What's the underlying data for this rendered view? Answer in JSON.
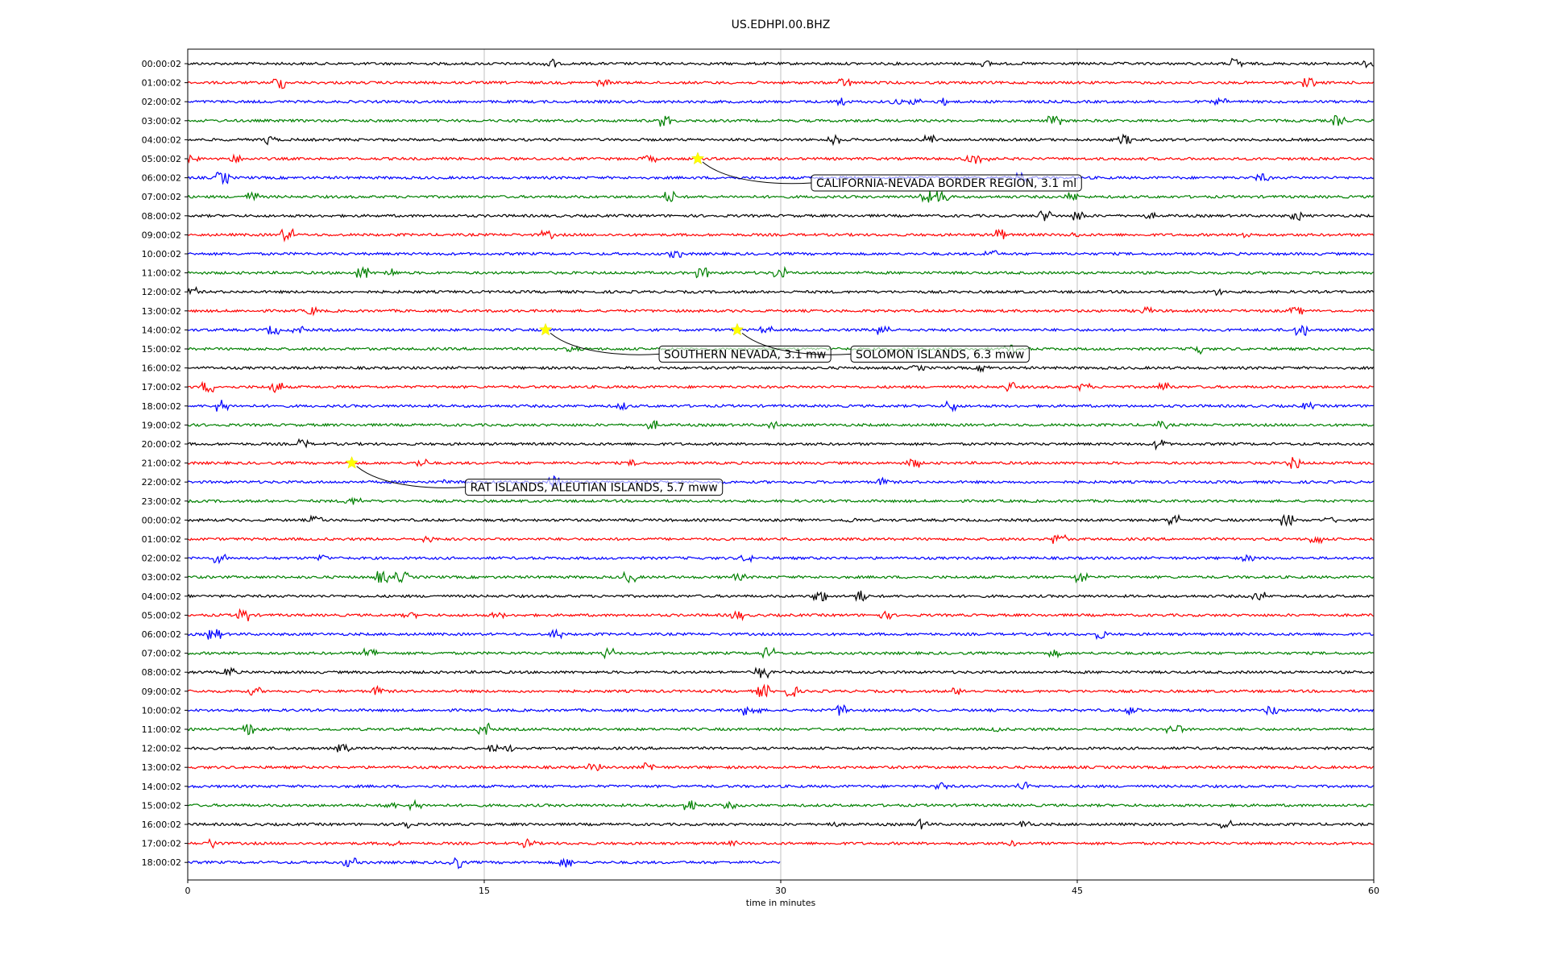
{
  "chart_data": {
    "type": "line",
    "title": "US.EDHPI.00.BHZ",
    "xlabel": "time in minutes",
    "ylabel": "",
    "xlim": [
      0,
      60
    ],
    "x_ticks": [
      "0",
      "15",
      "30",
      "45",
      "60"
    ],
    "x_tick_values": [
      0,
      15,
      30,
      45,
      60
    ],
    "grid": "vertical",
    "trace_colors": [
      "#000000",
      "#ff0000",
      "#0000ff",
      "#008000"
    ],
    "event_marker_color": "#ffff00",
    "row_labels": [
      "00:00:02",
      "01:00:02",
      "02:00:02",
      "03:00:02",
      "04:00:02",
      "05:00:02",
      "06:00:02",
      "07:00:02",
      "08:00:02",
      "09:00:02",
      "10:00:02",
      "11:00:02",
      "12:00:02",
      "13:00:02",
      "14:00:02",
      "15:00:02",
      "16:00:02",
      "17:00:02",
      "18:00:02",
      "19:00:02",
      "20:00:02",
      "21:00:02",
      "22:00:02",
      "23:00:02",
      "00:00:02",
      "01:00:02",
      "02:00:02",
      "03:00:02",
      "04:00:02",
      "05:00:02",
      "06:00:02",
      "07:00:02",
      "08:00:02",
      "09:00:02",
      "10:00:02",
      "11:00:02",
      "12:00:02",
      "13:00:02",
      "14:00:02",
      "15:00:02",
      "16:00:02",
      "17:00:02",
      "18:00:02"
    ],
    "last_row_end_minute": 30,
    "events": [
      {
        "label": "CALIFORNIA-NEVADA BORDER REGION, 3.1 ml",
        "row": 5,
        "minute": 25.8
      },
      {
        "label": "SOUTHERN NEVADA, 3.1 mw",
        "row": 14,
        "minute": 18.1
      },
      {
        "label": "SOLOMON ISLANDS, 6.3 mww",
        "row": 14,
        "minute": 27.8
      },
      {
        "label": "RAT ISLANDS, ALEUTIAN ISLANDS, 5.7 mww",
        "row": 21,
        "minute": 8.3
      }
    ]
  }
}
